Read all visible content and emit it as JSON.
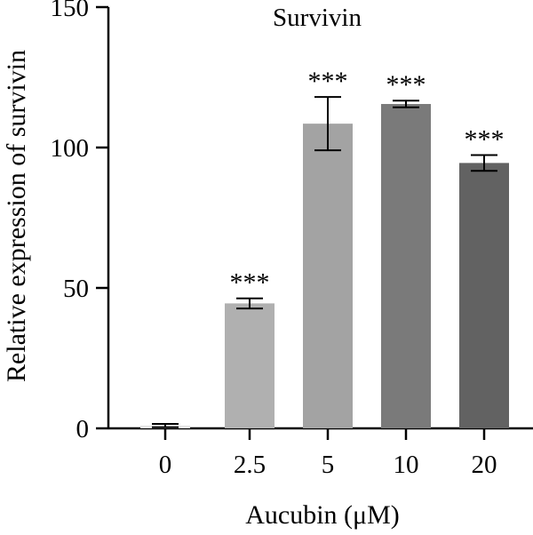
{
  "chart_data": {
    "type": "bar",
    "title": "Survivin",
    "xlabel": "Aucubin (μM)",
    "ylabel": "Relative expression of survivin",
    "categories": [
      "0",
      "2.5",
      "5",
      "10",
      "20"
    ],
    "values": [
      1,
      44.5,
      108.5,
      115.5,
      94.5
    ],
    "errors": [
      0.6,
      1.8,
      9.5,
      1.2,
      2.8
    ],
    "significance": [
      "",
      "***",
      "***",
      "***",
      "***"
    ],
    "bar_colors": [
      "#e6e6e6",
      "#b0b0b0",
      "#a3a3a3",
      "#7a7a7a",
      "#626262"
    ],
    "ylim": [
      0,
      150
    ],
    "yticks": [
      0,
      50,
      100,
      150
    ],
    "grid": false,
    "legend": "none"
  }
}
